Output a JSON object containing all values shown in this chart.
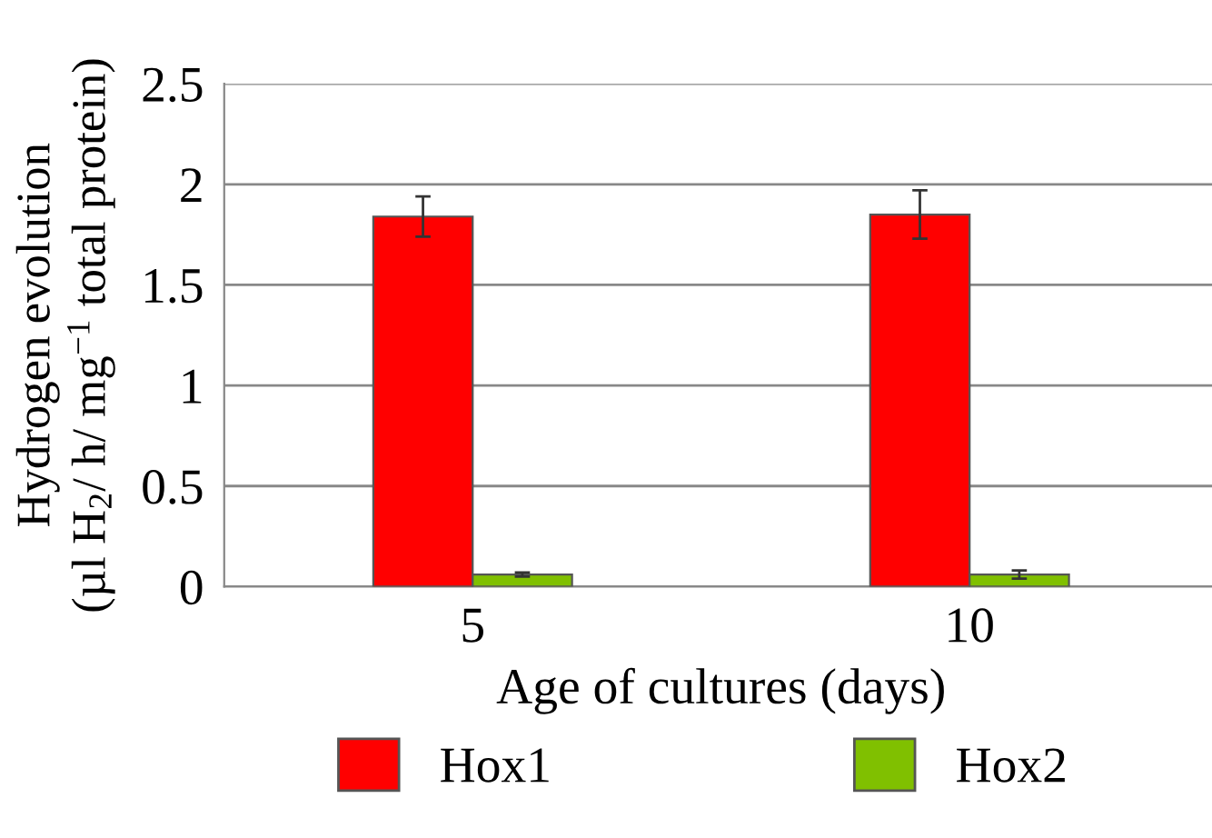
{
  "chart_data": {
    "type": "bar",
    "xlabel": "Age of cultures (days)",
    "ylabel": "Hydrogen evolution\n(µl H$_{2}$/ h/ mg$^{−1}$ total protein)",
    "categories": [
      "5",
      "10"
    ],
    "series": [
      {
        "name": "Hox1",
        "color": "#ff0000",
        "values": [
          1.84,
          1.85
        ],
        "errors": [
          0.1,
          0.12
        ]
      },
      {
        "name": "Hox2",
        "color": "#80c000",
        "values": [
          0.06,
          0.06
        ],
        "errors": [
          0.01,
          0.02
        ]
      }
    ],
    "ylim": [
      0,
      2.5
    ],
    "yticks": [
      0,
      0.5,
      1,
      1.5,
      2,
      2.5
    ],
    "grid": "y",
    "legend": "bottom"
  }
}
